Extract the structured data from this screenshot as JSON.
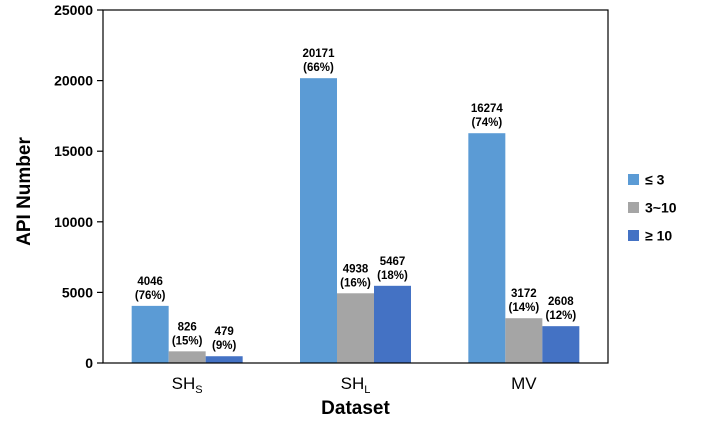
{
  "chart_data": {
    "type": "bar",
    "categories": [
      {
        "base": "SH",
        "sub": "S"
      },
      {
        "base": "SH",
        "sub": "L"
      },
      {
        "base": "MV",
        "sub": ""
      }
    ],
    "series": [
      {
        "name": "≤ 3",
        "color": "#5b9bd5",
        "values": [
          4046,
          20171,
          16274
        ],
        "labels": [
          "(76%)",
          "(66%)",
          "(74%)"
        ]
      },
      {
        "name": "3~10",
        "color": "#a5a5a5",
        "values": [
          826,
          4938,
          3172
        ],
        "labels": [
          "(15%)",
          "(16%)",
          "(14%)"
        ]
      },
      {
        "name": "≥ 10",
        "color": "#4472c4",
        "values": [
          479,
          5467,
          2608
        ],
        "labels": [
          "(9%)",
          "(18%)",
          "(12%)"
        ]
      }
    ],
    "xlabel": "Dataset",
    "ylabel": "API Number",
    "ylim": [
      0,
      25000
    ],
    "yticks": [
      0,
      5000,
      10000,
      15000,
      20000,
      25000
    ],
    "grid": false,
    "legend": "right"
  }
}
